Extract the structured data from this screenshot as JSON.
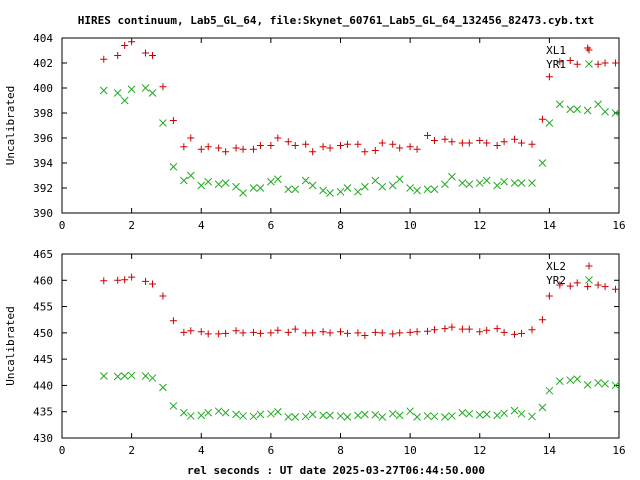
{
  "title": "HIRES continuum, Lab5_GL_64, file:Skynet_60761_Lab5_GL_64_132456_82473.cyb.txt",
  "xlabel": "rel seconds : UT date 2025-03-27T06:44:50.000",
  "colors": {
    "series1": "#cc0000",
    "series2": "#22aa22"
  },
  "chart_data": [
    {
      "type": "scatter",
      "ylabel": "Uncalibrated",
      "xlim": [
        0,
        16
      ],
      "ylim": [
        390,
        404
      ],
      "xticks": [
        0,
        2,
        4,
        6,
        8,
        10,
        12,
        14,
        16
      ],
      "yticks": [
        390,
        392,
        394,
        396,
        398,
        400,
        402,
        404
      ],
      "legend_position": "top-right",
      "x": [
        1.2,
        1.6,
        1.8,
        2.0,
        2.4,
        2.6,
        2.9,
        3.2,
        3.5,
        3.7,
        4.0,
        4.2,
        4.5,
        4.7,
        5.0,
        5.2,
        5.5,
        5.7,
        6.0,
        6.2,
        6.5,
        6.7,
        7.0,
        7.2,
        7.5,
        7.7,
        8.0,
        8.2,
        8.5,
        8.7,
        9.0,
        9.2,
        9.5,
        9.7,
        10.0,
        10.2,
        10.5,
        10.7,
        11.0,
        11.2,
        11.5,
        11.7,
        12.0,
        12.2,
        12.5,
        12.7,
        13.0,
        13.2,
        13.5,
        13.8,
        14.0,
        14.3,
        14.6,
        14.8,
        15.1,
        15.4,
        15.6,
        15.9
      ],
      "series": [
        {
          "name": "XL1",
          "marker": "plus",
          "values": [
            402.3,
            402.6,
            403.4,
            403.7,
            402.8,
            402.6,
            400.1,
            397.4,
            395.3,
            396.0,
            395.1,
            395.3,
            395.2,
            394.9,
            395.2,
            395.1,
            395.1,
            395.4,
            395.4,
            396.0,
            395.7,
            395.4,
            395.5,
            394.9,
            395.3,
            395.2,
            395.4,
            395.5,
            395.5,
            394.9,
            395.0,
            395.6,
            395.5,
            395.2,
            395.3,
            395.1,
            396.2,
            395.8,
            395.9,
            395.7,
            395.6,
            395.6,
            395.8,
            395.6,
            395.4,
            395.7,
            395.9,
            395.6,
            395.5,
            397.5,
            400.9,
            402.1,
            402.2,
            401.9,
            403.2,
            401.9,
            402.0,
            402.0
          ]
        },
        {
          "name": "YR1",
          "marker": "cross",
          "values": [
            399.8,
            399.6,
            399.0,
            399.9,
            400.0,
            399.6,
            397.2,
            393.7,
            392.6,
            393.0,
            392.2,
            392.5,
            392.3,
            392.4,
            392.1,
            391.6,
            392.0,
            392.0,
            392.5,
            392.7,
            391.9,
            391.9,
            392.6,
            392.2,
            391.8,
            391.6,
            391.7,
            392.0,
            391.7,
            392.1,
            392.6,
            392.1,
            392.2,
            392.7,
            392.0,
            391.8,
            391.9,
            391.9,
            392.3,
            392.9,
            392.4,
            392.3,
            392.4,
            392.6,
            392.2,
            392.5,
            392.4,
            392.4,
            392.4,
            394.0,
            397.2,
            398.7,
            398.3,
            398.3,
            398.2,
            398.7,
            398.1,
            398.0
          ]
        }
      ]
    },
    {
      "type": "scatter",
      "ylabel": "Uncalibrated",
      "xlim": [
        0,
        16
      ],
      "ylim": [
        430,
        465
      ],
      "xticks": [
        0,
        2,
        4,
        6,
        8,
        10,
        12,
        14,
        16
      ],
      "yticks": [
        430,
        435,
        440,
        445,
        450,
        455,
        460,
        465
      ],
      "legend_position": "top-right",
      "x": [
        1.2,
        1.6,
        1.8,
        2.0,
        2.4,
        2.6,
        2.9,
        3.2,
        3.5,
        3.7,
        4.0,
        4.2,
        4.5,
        4.7,
        5.0,
        5.2,
        5.5,
        5.7,
        6.0,
        6.2,
        6.5,
        6.7,
        7.0,
        7.2,
        7.5,
        7.7,
        8.0,
        8.2,
        8.5,
        8.7,
        9.0,
        9.2,
        9.5,
        9.7,
        10.0,
        10.2,
        10.5,
        10.7,
        11.0,
        11.2,
        11.5,
        11.7,
        12.0,
        12.2,
        12.5,
        12.7,
        13.0,
        13.2,
        13.5,
        13.8,
        14.0,
        14.3,
        14.6,
        14.8,
        15.1,
        15.4,
        15.6,
        15.9
      ],
      "series": [
        {
          "name": "XL2",
          "marker": "plus",
          "values": [
            459.9,
            460.0,
            460.1,
            460.6,
            459.8,
            459.3,
            457.0,
            452.3,
            450.1,
            450.4,
            450.2,
            449.8,
            449.8,
            449.9,
            450.4,
            450.0,
            450.1,
            449.9,
            450.0,
            450.5,
            450.1,
            450.7,
            450.0,
            450.0,
            450.2,
            450.0,
            450.2,
            449.9,
            450.0,
            449.5,
            450.1,
            450.0,
            449.8,
            450.0,
            450.1,
            450.2,
            450.3,
            450.6,
            450.8,
            451.1,
            450.7,
            450.7,
            450.2,
            450.5,
            450.8,
            450.1,
            449.7,
            449.9,
            450.6,
            452.5,
            457.0,
            459.1,
            458.9,
            459.5,
            458.8,
            459.1,
            458.8,
            458.3
          ]
        },
        {
          "name": "YR2",
          "marker": "cross",
          "values": [
            441.8,
            441.7,
            441.8,
            441.9,
            441.8,
            441.4,
            439.6,
            436.1,
            434.8,
            434.2,
            434.3,
            434.8,
            435.1,
            434.8,
            434.5,
            434.2,
            434.1,
            434.5,
            434.6,
            435.0,
            434.0,
            434.0,
            434.1,
            434.5,
            434.3,
            434.3,
            434.2,
            434.0,
            434.3,
            434.5,
            434.4,
            434.0,
            434.6,
            434.3,
            435.1,
            434.0,
            434.2,
            434.1,
            434.0,
            434.2,
            434.8,
            434.6,
            434.4,
            434.5,
            434.3,
            434.7,
            435.2,
            434.6,
            434.1,
            435.8,
            439.0,
            440.8,
            441.0,
            441.2,
            440.1,
            440.5,
            440.3,
            440.0
          ]
        }
      ]
    }
  ]
}
